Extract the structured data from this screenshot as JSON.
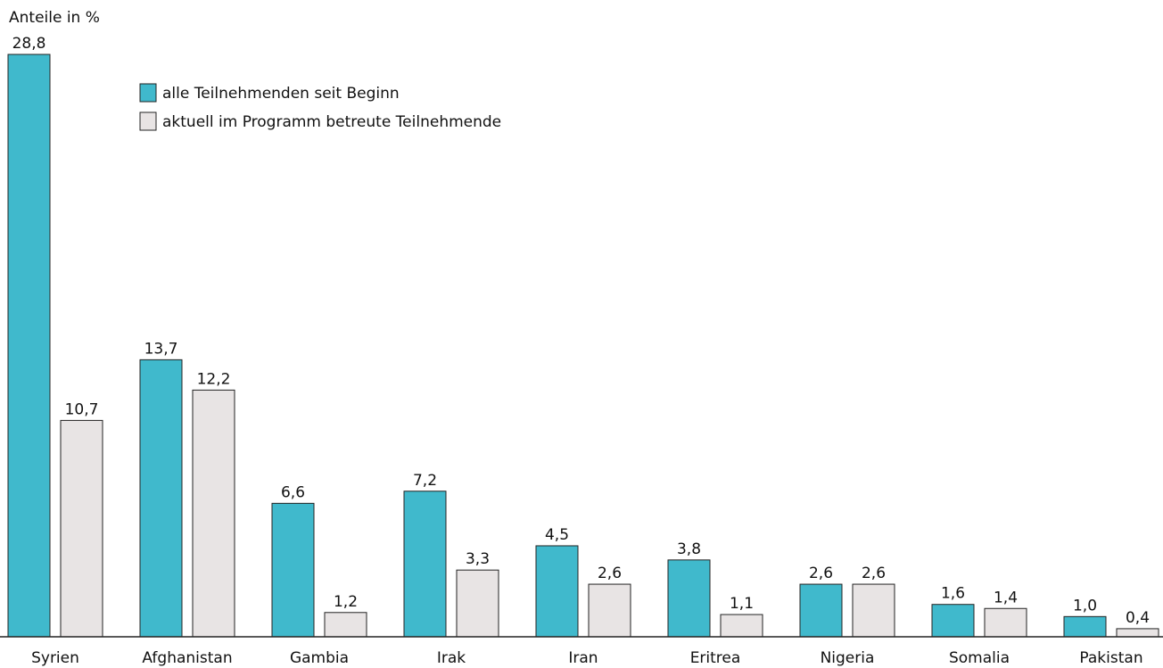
{
  "chart_data": {
    "type": "bar",
    "y_axis_label": "Anteile in %",
    "categories": [
      "Syrien",
      "Afghanistan",
      "Gambia",
      "Irak",
      "Iran",
      "Eritrea",
      "Nigeria",
      "Somalia",
      "Pakistan"
    ],
    "series": [
      {
        "name": "alle Teilnehmenden seit Beginn",
        "color": "#40b9cc",
        "values": [
          28.8,
          13.7,
          6.6,
          7.2,
          4.5,
          3.8,
          2.6,
          1.6,
          1.0
        ],
        "value_labels": [
          "28,8",
          "13,7",
          "6,6",
          "7,2",
          "4,5",
          "3,8",
          "2,6",
          "1,6",
          "1,0"
        ]
      },
      {
        "name": "aktuell im Programm betreute Teilnehmende",
        "color": "#e8e4e4",
        "values": [
          10.7,
          12.2,
          1.2,
          3.3,
          2.6,
          1.1,
          2.6,
          1.4,
          0.4
        ],
        "value_labels": [
          "10,7",
          "12,2",
          "1,2",
          "3,3",
          "2,6",
          "1,1",
          "2,6",
          "1,4",
          "0,4"
        ]
      }
    ]
  }
}
